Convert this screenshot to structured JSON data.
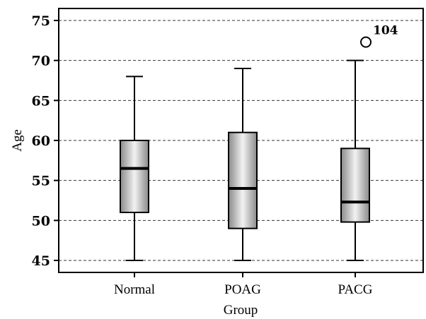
{
  "chart_data": {
    "type": "boxplot",
    "xlabel": "Group",
    "ylabel": "Age",
    "ylim": [
      43.5,
      76.5
    ],
    "yticks": [
      45,
      50,
      55,
      60,
      65,
      70,
      75
    ],
    "grid": "horizontal-dashed",
    "categories": [
      "Normal",
      "POAG",
      "PACG"
    ],
    "series": [
      {
        "min": 45,
        "q1": 51,
        "median": 56.5,
        "q3": 60,
        "max": 68
      },
      {
        "min": 45,
        "q1": 49,
        "median": 54,
        "q3": 61,
        "max": 69
      },
      {
        "min": 45,
        "q1": 49.8,
        "median": 52.3,
        "q3": 59,
        "max": 70
      }
    ],
    "outliers": [
      {
        "category": "PACG",
        "value": 72.3,
        "label": "104"
      }
    ],
    "colors": {
      "box_dark": "#8a8a8a",
      "box_light": "#f2f2f2",
      "stroke": "#000000",
      "grid": "#333333"
    }
  }
}
